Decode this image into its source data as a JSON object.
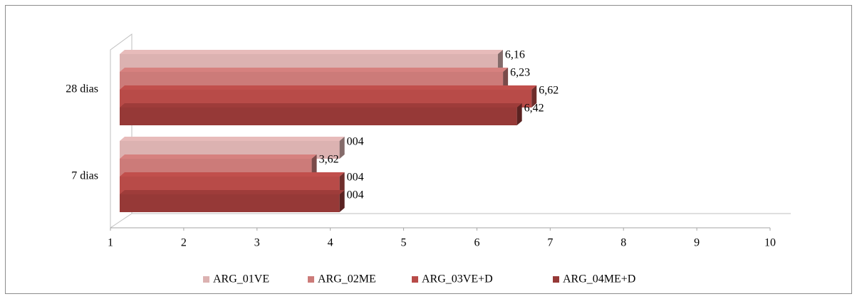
{
  "chart_data": {
    "type": "bar3d_horizontal",
    "categories": [
      "28 dias",
      "7 dias"
    ],
    "series": [
      {
        "name": "ARG_01VE",
        "color": "#dcb2b1",
        "values": [
          6.16,
          4
        ],
        "value_labels": [
          "6,16",
          "004"
        ]
      },
      {
        "name": "ARG_02ME",
        "color": "#cc7b79",
        "values": [
          6.23,
          3.62
        ],
        "value_labels": [
          "6,23",
          "3,62"
        ]
      },
      {
        "name": "ARG_03VE+D",
        "color": "#b84b48",
        "values": [
          6.62,
          4
        ],
        "value_labels": [
          "6,62",
          "004"
        ]
      },
      {
        "name": "ARG_04ME+D",
        "color": "#963937",
        "values": [
          6.42,
          4
        ],
        "value_labels": [
          "6,42",
          "004"
        ]
      }
    ],
    "xlim": [
      1,
      10
    ],
    "xticks": [
      1,
      2,
      3,
      4,
      5,
      6,
      7,
      8,
      9,
      10
    ],
    "legend": "bottom"
  }
}
